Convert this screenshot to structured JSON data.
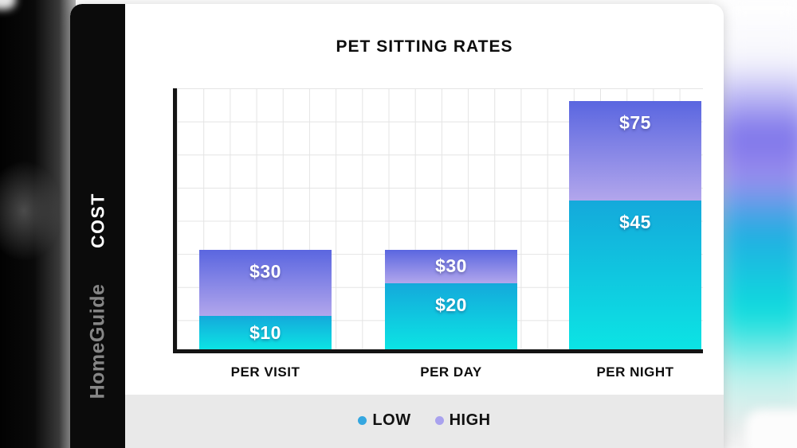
{
  "brand": {
    "cost_label": "COST",
    "name": "HomeGuide"
  },
  "chart_data": {
    "type": "bar",
    "stacked": true,
    "title": "PET SITTING RATES",
    "categories": [
      "PER VISIT",
      "PER DAY",
      "PER NIGHT"
    ],
    "series": [
      {
        "name": "LOW",
        "values": [
          10,
          20,
          45
        ]
      },
      {
        "name": "HIGH",
        "values": [
          30,
          30,
          75
        ]
      }
    ],
    "bar_labels": [
      {
        "low": "$10",
        "high": "$30"
      },
      {
        "low": "$20",
        "high": "$30"
      },
      {
        "low": "$45",
        "high": "$75"
      }
    ],
    "ylim": [
      0,
      80
    ],
    "grid": true,
    "legend_position": "bottom",
    "colors": {
      "low_gradient_top": "#14a9db",
      "low_gradient_bottom": "#0ce4e4",
      "high_gradient_top": "#5a66e0",
      "high_gradient_bottom": "#b2a6ec"
    }
  },
  "legend": {
    "items": [
      {
        "label": "LOW",
        "color": "#35a7e0"
      },
      {
        "label": "HIGH",
        "color": "#a9a2ee"
      }
    ]
  }
}
